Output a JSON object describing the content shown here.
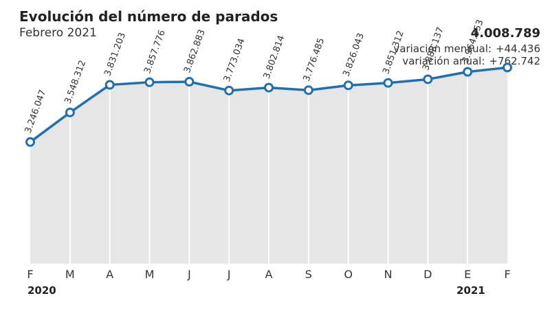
{
  "header": {
    "title": "Evolución del número de parados",
    "subtitle": "Febrero 2021"
  },
  "callout": {
    "value": "4.008.789",
    "monthly_label": "variación mensual:",
    "monthly_value": "+44.436",
    "annual_label": "variación anual:",
    "annual_value": "+762.742"
  },
  "colors": {
    "line": "#1f6fb2",
    "area": "#e6e6e6",
    "marker_fill": "#ffffff"
  },
  "chart_data": {
    "type": "area",
    "title": "Evolución del número de parados",
    "subtitle": "Febrero 2021",
    "categories": [
      "F",
      "M",
      "A",
      "M",
      "J",
      "J",
      "A",
      "S",
      "O",
      "N",
      "D",
      "E",
      "F"
    ],
    "years": [
      "2020",
      "2021"
    ],
    "series": [
      {
        "values": [
          3246047,
          3548312,
          3831203,
          3857776,
          3862883,
          3773034,
          3802814,
          3776485,
          3826043,
          3851312,
          3888137,
          3964353,
          4008789
        ]
      }
    ],
    "value_labels": [
      "3.246.047",
      "3.548.312",
      "3.831.203",
      "3.857.776",
      "3.862.883",
      "3.773.034",
      "3.802.814",
      "3.776.485",
      "3.826.043",
      "3.851.312",
      "3.888.137",
      "3.964.353"
    ],
    "ylim": [
      2000000,
      4700000
    ],
    "grid": false,
    "legend": "none"
  }
}
